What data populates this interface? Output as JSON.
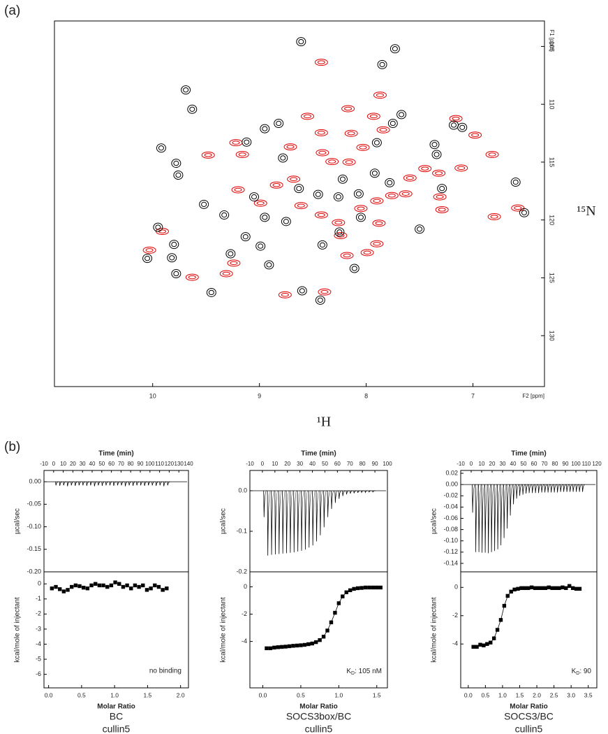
{
  "chart_data": [
    {
      "type": "contour",
      "panel_label": "(a)",
      "xlabel": "¹H",
      "ylabel": "¹⁵N",
      "x_unit": "F2 [ppm]",
      "y_unit": "F1 [ppm]",
      "xlim": [
        6.33,
        10.92
      ],
      "x_inverted": true,
      "xticks": [
        10,
        9,
        8,
        7
      ],
      "ylim": [
        102.8,
        134.4
      ],
      "y_inverted": true,
      "yticks": [
        105,
        110,
        115,
        120,
        125,
        130
      ],
      "series": [
        {
          "color": "#e00000",
          "x": [
            8.42,
            7.87,
            8.17,
            7.93,
            7.84,
            8.14,
            8.42,
            8.55,
            9.16,
            8.71,
            8.41,
            8.32,
            8.68,
            8.84,
            8.99,
            9.2,
            8.61,
            8.42,
            8.26,
            8.05,
            7.9,
            7.76,
            7.59,
            7.45,
            7.32,
            7.31,
            7.29,
            7.11,
            6.82,
            7.16,
            6.98,
            8.18,
            7.99,
            7.9,
            8.24,
            9.24,
            9.31,
            8.76,
            8.39,
            9.63,
            10.03,
            9.91,
            9.48,
            9.22,
            7.88,
            8.16,
            8.03,
            6.8,
            6.58,
            7.63
          ],
          "values": [
            106.37,
            109.21,
            110.38,
            111.04,
            112.21,
            112.51,
            112.46,
            111.04,
            114.34,
            113.68,
            114.19,
            114.95,
            116.47,
            116.98,
            118.55,
            117.39,
            118.76,
            119.57,
            120.23,
            119.01,
            118.35,
            117.89,
            116.37,
            115.56,
            115.96,
            118.0,
            119.11,
            115.51,
            114.34,
            111.24,
            112.66,
            123.07,
            122.82,
            122.06,
            121.35,
            123.73,
            124.64,
            126.47,
            126.22,
            124.95,
            122.61,
            120.99,
            114.39,
            113.32,
            120.28,
            115.0,
            113.73,
            119.72,
            118.96,
            117.74
          ]
        },
        {
          "color": "#000000",
          "x": [
            8.61,
            7.73,
            7.85,
            9.69,
            9.63,
            9.92,
            9.78,
            9.76,
            9.52,
            9.33,
            9.05,
            9.12,
            8.95,
            8.82,
            8.78,
            8.63,
            8.45,
            8.22,
            8.26,
            8.07,
            7.92,
            7.78,
            7.9,
            7.75,
            7.67,
            7.36,
            7.34,
            7.18,
            7.1,
            7.29,
            7.5,
            8.05,
            8.25,
            8.41,
            8.75,
            8.95,
            9.13,
            8.91,
            8.6,
            8.43,
            8.11,
            6.6,
            6.52,
            9.95,
            9.8,
            9.82,
            10.05,
            9.78,
            9.45,
            9.27,
            8.99
          ],
          "values": [
            104.59,
            105.2,
            106.57,
            108.76,
            110.43,
            113.78,
            115.1,
            116.12,
            118.65,
            119.57,
            118.0,
            113.27,
            112.11,
            111.65,
            114.64,
            117.28,
            117.79,
            116.47,
            118.0,
            117.74,
            115.96,
            116.78,
            113.32,
            111.65,
            110.89,
            113.48,
            114.34,
            111.8,
            112.0,
            117.28,
            120.79,
            119.77,
            121.04,
            122.16,
            120.13,
            119.77,
            121.45,
            123.88,
            126.12,
            126.93,
            124.19,
            116.73,
            119.37,
            120.63,
            122.11,
            123.27,
            123.32,
            124.64,
            126.27,
            122.92,
            122.26
          ]
        }
      ]
    },
    {
      "type": "spike",
      "panel_label": "(b)",
      "title": "Time (min)",
      "ylabel": "µcal/sec",
      "color": "#000000",
      "xlim": [
        -10,
        140
      ],
      "xticks": [
        -10,
        0,
        10,
        20,
        30,
        40,
        50,
        60,
        70,
        80,
        90,
        100,
        110,
        120,
        130,
        140
      ],
      "ylim": [
        -0.2,
        0.025
      ],
      "yticks": [
        {
          "value": 0,
          "label": "0.00"
        },
        -0.05,
        {
          "value": -0.1,
          "label": "-0.10"
        },
        -0.15,
        {
          "value": -0.2,
          "label": "-0.20"
        }
      ],
      "x": [
        2,
        6,
        10,
        14,
        18,
        22,
        26,
        30,
        34,
        38,
        42,
        46,
        50,
        54,
        58,
        62,
        66,
        70,
        74,
        78,
        82,
        86,
        90,
        94,
        98,
        102,
        106,
        110,
        114,
        118
      ],
      "values": [
        -0.008,
        -0.009,
        -0.008,
        -0.01,
        -0.008,
        -0.009,
        -0.008,
        -0.008,
        -0.009,
        -0.008,
        -0.01,
        -0.008,
        -0.009,
        -0.008,
        -0.008,
        -0.009,
        -0.008,
        -0.008,
        -0.01,
        -0.008,
        -0.009,
        -0.008,
        -0.008,
        -0.009,
        -0.008,
        -0.008,
        -0.009,
        -0.008,
        -0.01,
        -0.008
      ]
    },
    {
      "type": "scatter",
      "xlabel": "Molar Ratio",
      "ylabel": "kcal/mole of injectant",
      "annotation": "no binding",
      "caption": [
        "BC",
        "cullin5"
      ],
      "fit": false,
      "color": "#000000",
      "xlim": [
        -0.07,
        2.12
      ],
      "xticks": [
        {
          "value": 0,
          "label": "0.0"
        },
        0.5,
        {
          "value": 1,
          "label": "1.0"
        },
        1.5,
        {
          "value": 2,
          "label": "2.0"
        }
      ],
      "ylim": [
        -6.9,
        0.8
      ],
      "yticks": [
        0,
        -1,
        -2,
        -3,
        -4,
        -5,
        -6
      ],
      "x": [
        0.05,
        0.11,
        0.17,
        0.23,
        0.29,
        0.35,
        0.41,
        0.47,
        0.53,
        0.59,
        0.65,
        0.71,
        0.77,
        0.83,
        0.89,
        0.95,
        1.01,
        1.07,
        1.13,
        1.19,
        1.25,
        1.31,
        1.37,
        1.43,
        1.49,
        1.55,
        1.61,
        1.67,
        1.73,
        1.79
      ],
      "values": [
        -0.3,
        -0.2,
        -0.35,
        -0.5,
        -0.4,
        -0.2,
        -0.1,
        -0.15,
        -0.25,
        -0.3,
        -0.1,
        0.0,
        -0.1,
        -0.1,
        -0.2,
        -0.1,
        0.1,
        0.0,
        -0.2,
        -0.1,
        -0.3,
        -0.1,
        -0.2,
        -0.1,
        -0.4,
        -0.3,
        -0.1,
        -0.2,
        -0.4,
        -0.3
      ]
    },
    {
      "type": "spike",
      "title": "Time (min)",
      "ylabel": "µcal/sec",
      "color": "#000000",
      "xlim": [
        -10,
        100
      ],
      "xticks": [
        -10,
        0,
        10,
        20,
        30,
        40,
        50,
        60,
        70,
        80,
        90,
        100
      ],
      "ylim": [
        -0.2,
        0.05
      ],
      "yticks": [
        {
          "value": 0,
          "label": "0.0"
        },
        -0.1,
        -0.2
      ],
      "x": [
        1,
        4,
        7,
        10,
        13,
        16,
        19,
        22,
        25,
        28,
        31,
        34,
        37,
        40,
        43,
        46,
        49,
        52,
        55,
        58,
        61,
        64,
        67,
        70,
        73,
        76,
        79,
        82,
        85,
        88
      ],
      "values": [
        -0.065,
        -0.16,
        -0.158,
        -0.157,
        -0.156,
        -0.155,
        -0.154,
        -0.153,
        -0.152,
        -0.15,
        -0.148,
        -0.145,
        -0.14,
        -0.135,
        -0.125,
        -0.11,
        -0.09,
        -0.065,
        -0.045,
        -0.03,
        -0.02,
        -0.013,
        -0.009,
        -0.007,
        -0.006,
        -0.005,
        -0.004,
        -0.004,
        -0.003,
        -0.003
      ]
    },
    {
      "type": "scatter",
      "xlabel": "Molar Ratio",
      "ylabel": "kcal/mole of injectant",
      "annotation": [
        "K",
        "D",
        ": 105 nM"
      ],
      "caption": [
        "SOCS3box/BC",
        "cullin5"
      ],
      "fit": true,
      "color": "#000000",
      "xlim": [
        -0.17,
        1.64
      ],
      "xticks": [
        {
          "value": 0,
          "label": "0.0"
        },
        0.5,
        {
          "value": 1,
          "label": "1.0"
        },
        1.5
      ],
      "ylim": [
        -7.4,
        1.1
      ],
      "yticks": [
        0,
        -2,
        -4
      ],
      "x": [
        0.05,
        0.1,
        0.15,
        0.2,
        0.25,
        0.3,
        0.35,
        0.4,
        0.45,
        0.5,
        0.55,
        0.6,
        0.65,
        0.7,
        0.75,
        0.8,
        0.85,
        0.9,
        0.95,
        1.0,
        1.05,
        1.1,
        1.15,
        1.2,
        1.25,
        1.3,
        1.35,
        1.4,
        1.45,
        1.5,
        1.55
      ],
      "values": [
        -4.5,
        -4.5,
        -4.45,
        -4.42,
        -4.4,
        -4.38,
        -4.35,
        -4.32,
        -4.3,
        -4.28,
        -4.25,
        -4.2,
        -4.15,
        -4.05,
        -3.9,
        -3.65,
        -3.2,
        -2.6,
        -1.9,
        -1.2,
        -0.7,
        -0.4,
        -0.25,
        -0.15,
        -0.1,
        -0.08,
        -0.05,
        -0.05,
        -0.05,
        -0.05,
        -0.05
      ]
    },
    {
      "type": "spike",
      "title": "Time (min)",
      "ylabel": "µcal/sec",
      "color": "#000000",
      "xlim": [
        -10,
        120
      ],
      "xticks": [
        -10,
        0,
        10,
        20,
        30,
        40,
        50,
        60,
        70,
        80,
        90,
        100,
        110,
        120
      ],
      "ylim": [
        -0.155,
        0.025
      ],
      "yticks": [
        0.02,
        {
          "value": 0,
          "label": "0.00"
        },
        -0.02,
        -0.04,
        -0.06,
        -0.08,
        {
          "value": -0.1,
          "label": "-0.10"
        },
        -0.12,
        -0.14
      ],
      "x": [
        1,
        4,
        7,
        10,
        13,
        16,
        19,
        22,
        25,
        28,
        31,
        34,
        37,
        40,
        43,
        46,
        49,
        52,
        55,
        58,
        61,
        64,
        67,
        70,
        73,
        76,
        79,
        82,
        85,
        88,
        91,
        94,
        97,
        100,
        103,
        106
      ],
      "values": [
        -0.05,
        -0.12,
        -0.12,
        -0.121,
        -0.121,
        -0.122,
        -0.12,
        -0.118,
        -0.115,
        -0.108,
        -0.095,
        -0.078,
        -0.055,
        -0.035,
        -0.025,
        -0.02,
        -0.018,
        -0.016,
        -0.015,
        -0.015,
        -0.015,
        -0.015,
        -0.014,
        -0.014,
        -0.014,
        -0.014,
        -0.014,
        -0.014,
        -0.013,
        -0.013,
        -0.013,
        -0.013,
        -0.013,
        -0.013,
        -0.013,
        -0.013
      ]
    },
    {
      "type": "scatter",
      "xlabel": "Molar Ratio",
      "ylabel": "kcal/mole of injectant",
      "annotation": [
        "K",
        "D",
        ": 90"
      ],
      "caption": [
        "SOCS3/BC",
        "cullin5"
      ],
      "fit": true,
      "color": "#000000",
      "xlim": [
        -0.22,
        3.75
      ],
      "xticks": [
        {
          "value": 0,
          "label": "0.0"
        },
        0.5,
        {
          "value": 1,
          "label": "1.0"
        },
        1.5,
        {
          "value": 2,
          "label": "2.0"
        },
        2.5,
        {
          "value": 3,
          "label": "3.0"
        },
        3.5
      ],
      "ylim": [
        -7.1,
        1.1
      ],
      "yticks": [
        0,
        -2,
        -4
      ],
      "x": [
        0.15,
        0.25,
        0.35,
        0.45,
        0.55,
        0.65,
        0.75,
        0.85,
        0.95,
        1.05,
        1.15,
        1.25,
        1.35,
        1.45,
        1.55,
        1.65,
        1.75,
        1.85,
        1.95,
        2.05,
        2.15,
        2.25,
        2.35,
        2.45,
        2.55,
        2.65,
        2.75,
        2.85,
        2.95,
        3.05,
        3.15,
        3.25
      ],
      "values": [
        -4.2,
        -4.2,
        -4.05,
        -4.1,
        -4.0,
        -3.9,
        -3.6,
        -3.0,
        -2.3,
        -1.3,
        -0.6,
        -0.3,
        -0.15,
        -0.1,
        -0.05,
        -0.05,
        -0.05,
        0,
        -0.05,
        -0.05,
        -0.05,
        -0.05,
        0,
        -0.05,
        -0.05,
        -0.05,
        0,
        -0.05,
        0.1,
        -0.05,
        -0.1,
        -0.1
      ]
    }
  ]
}
